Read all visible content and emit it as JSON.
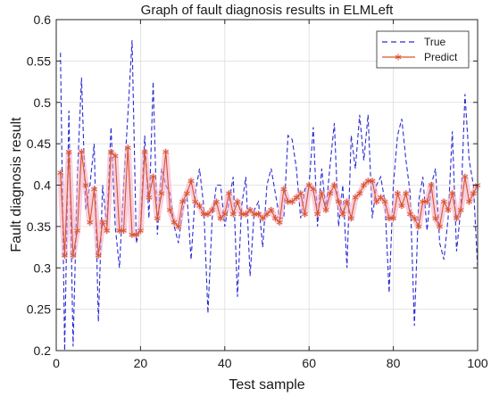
{
  "chart_data": {
    "type": "line",
    "title": "Graph of fault diagnosis results in ELMLeft",
    "xlabel": "Test sample",
    "ylabel": "Fault diagnosis result",
    "xlim": [
      0,
      100
    ],
    "ylim": [
      0.2,
      0.6
    ],
    "xticks": [
      0,
      20,
      40,
      60,
      80,
      100
    ],
    "yticks": [
      0.2,
      0.25,
      0.3,
      0.35,
      0.4,
      0.45,
      0.5,
      0.55,
      0.6
    ],
    "grid": true,
    "legend_position": "top-right",
    "colors": {
      "true": "#2b2bd6",
      "predict": "#d9542b",
      "predict_halo": "#f2a7c4"
    },
    "series": [
      {
        "name": "True",
        "style": "dashed",
        "x": [
          1,
          2,
          3,
          4,
          5,
          6,
          7,
          8,
          9,
          10,
          11,
          12,
          13,
          14,
          15,
          16,
          17,
          18,
          19,
          20,
          21,
          22,
          23,
          24,
          25,
          26,
          27,
          28,
          29,
          30,
          31,
          32,
          33,
          34,
          35,
          36,
          37,
          38,
          39,
          40,
          41,
          42,
          43,
          44,
          45,
          46,
          47,
          48,
          49,
          50,
          51,
          52,
          53,
          54,
          55,
          56,
          57,
          58,
          59,
          60,
          61,
          62,
          63,
          64,
          65,
          66,
          67,
          68,
          69,
          70,
          71,
          72,
          73,
          74,
          75,
          76,
          77,
          78,
          79,
          80,
          81,
          82,
          83,
          84,
          85,
          86,
          87,
          88,
          89,
          90,
          91,
          92,
          93,
          94,
          95,
          96,
          97,
          98,
          99,
          100
        ],
        "values": [
          0.56,
          0.2,
          0.49,
          0.205,
          0.41,
          0.53,
          0.37,
          0.4,
          0.45,
          0.235,
          0.4,
          0.35,
          0.47,
          0.35,
          0.3,
          0.4,
          0.485,
          0.575,
          0.33,
          0.35,
          0.46,
          0.36,
          0.525,
          0.34,
          0.42,
          0.4,
          0.39,
          0.35,
          0.33,
          0.37,
          0.39,
          0.31,
          0.39,
          0.42,
          0.375,
          0.245,
          0.36,
          0.4,
          0.4,
          0.35,
          0.38,
          0.41,
          0.265,
          0.375,
          0.41,
          0.29,
          0.37,
          0.38,
          0.325,
          0.4,
          0.42,
          0.39,
          0.36,
          0.36,
          0.46,
          0.455,
          0.42,
          0.36,
          0.395,
          0.4,
          0.47,
          0.35,
          0.42,
          0.37,
          0.425,
          0.475,
          0.35,
          0.4,
          0.3,
          0.46,
          0.42,
          0.485,
          0.43,
          0.485,
          0.36,
          0.4,
          0.41,
          0.38,
          0.27,
          0.4,
          0.46,
          0.48,
          0.43,
          0.39,
          0.23,
          0.38,
          0.41,
          0.345,
          0.4,
          0.42,
          0.33,
          0.31,
          0.36,
          0.465,
          0.32,
          0.37,
          0.51,
          0.43,
          0.4,
          0.3
        ]
      },
      {
        "name": "Predict",
        "style": "solid-star",
        "x": [
          1,
          2,
          3,
          4,
          5,
          6,
          7,
          8,
          9,
          10,
          11,
          12,
          13,
          14,
          15,
          16,
          17,
          18,
          19,
          20,
          21,
          22,
          23,
          24,
          25,
          26,
          27,
          28,
          29,
          30,
          31,
          32,
          33,
          34,
          35,
          36,
          37,
          38,
          39,
          40,
          41,
          42,
          43,
          44,
          45,
          46,
          47,
          48,
          49,
          50,
          51,
          52,
          53,
          54,
          55,
          56,
          57,
          58,
          59,
          60,
          61,
          62,
          63,
          64,
          65,
          66,
          67,
          68,
          69,
          70,
          71,
          72,
          73,
          74,
          75,
          76,
          77,
          78,
          79,
          80,
          81,
          82,
          83,
          84,
          85,
          86,
          87,
          88,
          89,
          90,
          91,
          92,
          93,
          94,
          95,
          96,
          97,
          98,
          99,
          100
        ],
        "values": [
          0.415,
          0.315,
          0.44,
          0.315,
          0.345,
          0.44,
          0.4,
          0.355,
          0.395,
          0.315,
          0.355,
          0.345,
          0.44,
          0.435,
          0.345,
          0.345,
          0.445,
          0.34,
          0.34,
          0.345,
          0.44,
          0.385,
          0.41,
          0.36,
          0.39,
          0.44,
          0.37,
          0.355,
          0.35,
          0.38,
          0.39,
          0.405,
          0.38,
          0.375,
          0.365,
          0.365,
          0.37,
          0.38,
          0.36,
          0.365,
          0.39,
          0.365,
          0.38,
          0.365,
          0.365,
          0.37,
          0.365,
          0.365,
          0.36,
          0.365,
          0.37,
          0.36,
          0.355,
          0.395,
          0.38,
          0.38,
          0.385,
          0.39,
          0.365,
          0.4,
          0.395,
          0.365,
          0.39,
          0.37,
          0.39,
          0.4,
          0.38,
          0.365,
          0.38,
          0.36,
          0.385,
          0.39,
          0.4,
          0.405,
          0.405,
          0.38,
          0.385,
          0.38,
          0.36,
          0.36,
          0.39,
          0.375,
          0.39,
          0.365,
          0.36,
          0.35,
          0.38,
          0.38,
          0.4,
          0.36,
          0.35,
          0.38,
          0.37,
          0.39,
          0.36,
          0.37,
          0.41,
          0.38,
          0.39,
          0.4
        ]
      }
    ]
  }
}
